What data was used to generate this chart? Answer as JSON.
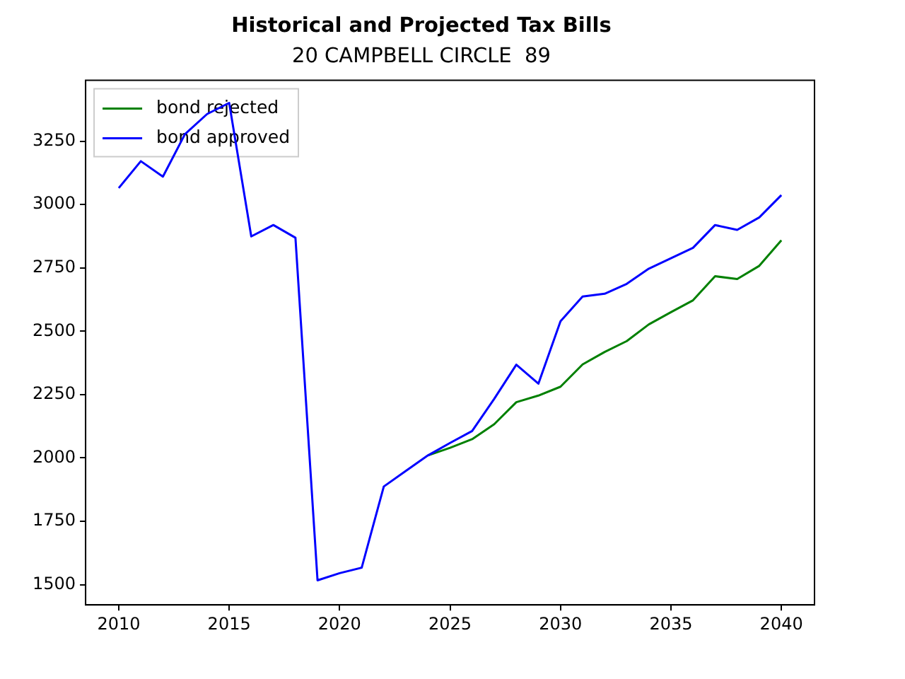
{
  "chart_data": {
    "type": "line",
    "title": "Historical and Projected Tax Bills",
    "subtitle": "20 CAMPBELL CIRCLE  89",
    "x": [
      2010,
      2011,
      2012,
      2013,
      2014,
      2015,
      2016,
      2017,
      2018,
      2019,
      2020,
      2021,
      2022,
      2023,
      2024,
      2025,
      2026,
      2027,
      2028,
      2029,
      2030,
      2031,
      2032,
      2033,
      2034,
      2035,
      2036,
      2037,
      2038,
      2039,
      2040
    ],
    "series": [
      {
        "name": "bond rejected",
        "color": "#008000",
        "values": [
          null,
          null,
          null,
          null,
          null,
          null,
          null,
          null,
          null,
          null,
          null,
          null,
          null,
          null,
          2010,
          2040,
          2074,
          2133,
          2220,
          2246,
          2281,
          2369,
          2418,
          2461,
          2527,
          2575,
          2622,
          2717,
          2706,
          2758,
          2859
        ]
      },
      {
        "name": "bond approved",
        "color": "#0000ff",
        "values": [
          3065,
          3171,
          3110,
          3278,
          3357,
          3401,
          2874,
          2919,
          2869,
          1517,
          1545,
          1567,
          1887,
          1949,
          2010,
          2059,
          2106,
          2233,
          2368,
          2293,
          2539,
          2637,
          2648,
          2687,
          2747,
          2788,
          2829,
          2919,
          2900,
          2949,
          3037
        ]
      }
    ],
    "xlim": [
      2008.5,
      2041.5
    ],
    "xticks": [
      2010,
      2015,
      2020,
      2025,
      2030,
      2035,
      2040
    ],
    "ylim": [
      1420,
      3490
    ],
    "yticks": [
      1500,
      1750,
      2000,
      2250,
      2500,
      2750,
      3000,
      3250
    ],
    "grid": false,
    "legend": "top left"
  }
}
